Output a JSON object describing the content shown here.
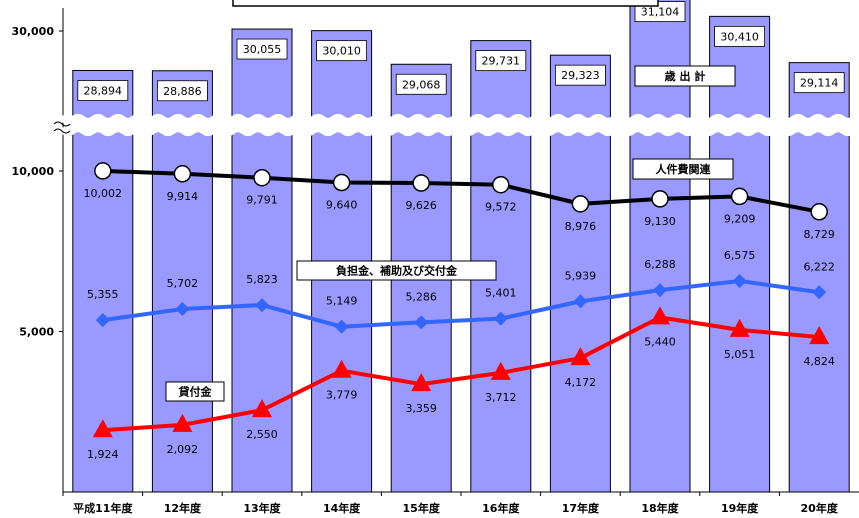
{
  "chart_data": {
    "type": "bar",
    "title": "",
    "y_axis_ticks": [
      "30,000",
      "10,000",
      "5,000"
    ],
    "y_axis_break": true,
    "categories": [
      "平成11年度",
      "12年度",
      "13年度",
      "14年度",
      "15年度",
      "16年度",
      "17年度",
      "18年度",
      "19年度",
      "20年度"
    ],
    "bar_series": {
      "name": "歳 出 計",
      "values": [
        28894,
        28886,
        30055,
        30010,
        29068,
        29731,
        29323,
        31104,
        30410,
        29114
      ],
      "labels": [
        "28,894",
        "28,886",
        "30,055",
        "30,010",
        "29,068",
        "29,731",
        "29,323",
        "31,104",
        "30,410",
        "29,114"
      ],
      "color": "#9999ff"
    },
    "line_series": [
      {
        "name": "人件費関連",
        "marker": "circle",
        "color": "#000000",
        "values": [
          10002,
          9914,
          9791,
          9640,
          9626,
          9572,
          8976,
          9130,
          9209,
          8729
        ],
        "labels": [
          "10,002",
          "9,914",
          "9,791",
          "9,640",
          "9,626",
          "9,572",
          "8,976",
          "9,130",
          "9,209",
          "8,729"
        ]
      },
      {
        "name": "負担金、補助及び交付金",
        "marker": "diamond",
        "color": "#3366ff",
        "values": [
          5355,
          5702,
          5823,
          5149,
          5286,
          5401,
          5939,
          6288,
          6575,
          6222
        ],
        "labels": [
          "5,355",
          "5,702",
          "5,823",
          "5,149",
          "5,286",
          "5,401",
          "5,939",
          "6,288",
          "6,575",
          "6,222"
        ]
      },
      {
        "name": "貸付金",
        "marker": "triangle",
        "color": "#ff0000",
        "values": [
          1924,
          2092,
          2550,
          3779,
          3359,
          3712,
          4172,
          5440,
          5051,
          4824
        ],
        "labels": [
          "1,924",
          "2,092",
          "2,550",
          "3,779",
          "3,359",
          "3,712",
          "4,172",
          "5,440",
          "5,051",
          "4,824"
        ]
      }
    ],
    "legend_labels": [
      "歳 出 計",
      "人件費関連",
      "負担金、補助及び交付金",
      "貸付金"
    ]
  }
}
